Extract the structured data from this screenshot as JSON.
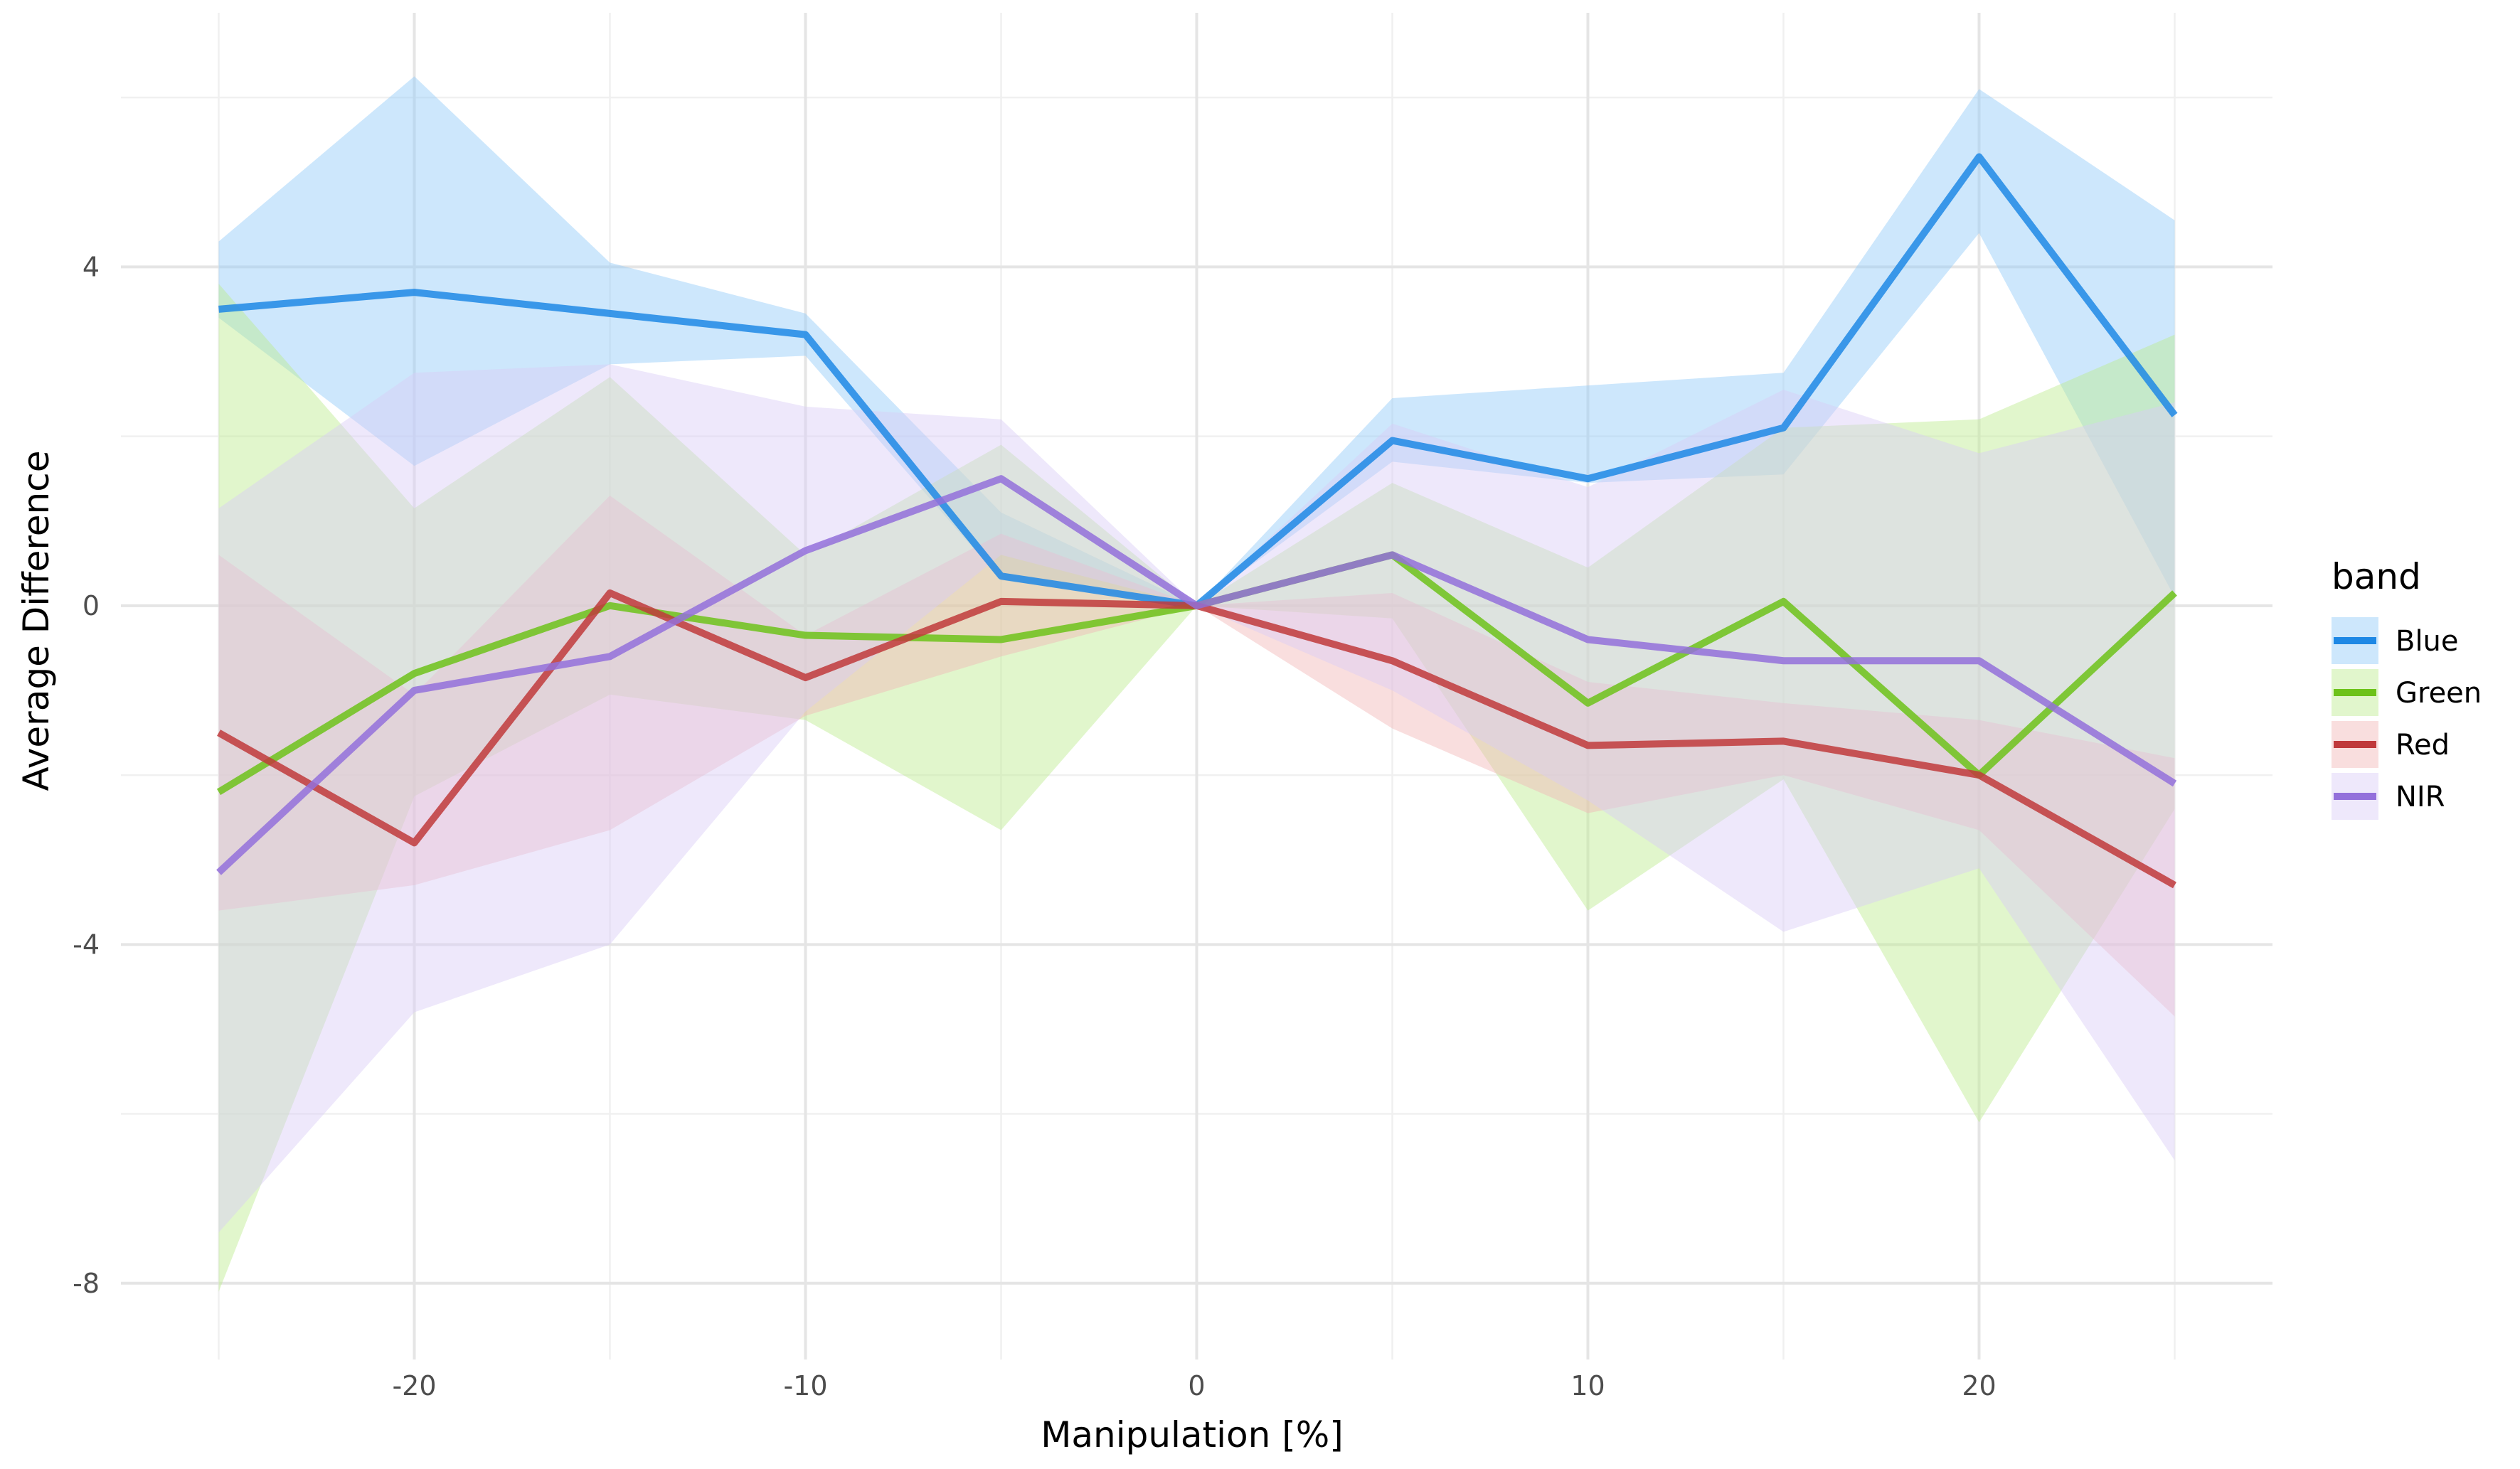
{
  "chart_data": {
    "type": "line",
    "title": "",
    "xlabel": "Manipulation [%]",
    "ylabel": "Average Difference",
    "x": [
      -25,
      -20,
      -15,
      -10,
      -5,
      0,
      5,
      10,
      15,
      20,
      25
    ],
    "xlim": [
      -27.5,
      27.5
    ],
    "ylim": [
      -8.9,
      7.0
    ],
    "x_ticks": [
      -20,
      -10,
      0,
      10,
      20
    ],
    "x_tick_labels": [
      "-20",
      "-10",
      "0",
      "10",
      "20"
    ],
    "y_ticks": [
      -8,
      -4,
      0,
      4
    ],
    "y_tick_labels": [
      "-8",
      "-4",
      "0",
      "4"
    ],
    "grid": true,
    "legend": {
      "title": "band",
      "position": "right"
    },
    "series": [
      {
        "name": "Blue",
        "color": "#1E88E5",
        "fill": "#90CAF9",
        "values": [
          3.5,
          3.7,
          3.45,
          3.2,
          0.35,
          0,
          1.95,
          1.5,
          2.1,
          5.3,
          2.25
        ],
        "lower": [
          3.4,
          1.65,
          2.85,
          2.95,
          0.3,
          0,
          1.7,
          1.45,
          1.55,
          4.4,
          0.1
        ],
        "upper": [
          4.3,
          6.25,
          4.05,
          3.45,
          1.1,
          0,
          2.45,
          2.6,
          2.75,
          6.1,
          4.55
        ]
      },
      {
        "name": "Green",
        "color": "#6DC21A",
        "fill": "#BDEB8F",
        "values": [
          -2.2,
          -0.8,
          0.0,
          -0.35,
          -0.4,
          0,
          0.6,
          -1.15,
          0.05,
          -2.0,
          0.15
        ],
        "lower": [
          -8.1,
          -2.25,
          -1.05,
          -1.35,
          -2.65,
          0,
          -0.15,
          -3.6,
          -2.05,
          -6.1,
          -2.4
        ],
        "upper": [
          3.8,
          1.15,
          2.7,
          0.6,
          1.9,
          0,
          1.45,
          0.45,
          2.1,
          2.2,
          3.2
        ]
      },
      {
        "name": "Red",
        "color": "#C0393B",
        "fill": "#F2B6B6",
        "values": [
          -1.5,
          -2.8,
          0.15,
          -0.85,
          0.05,
          0,
          -0.65,
          -1.65,
          -1.6,
          -2.0,
          -3.3
        ],
        "lower": [
          -3.6,
          -3.3,
          -2.65,
          -1.3,
          -0.6,
          0,
          -1.45,
          -2.45,
          -2.0,
          -2.65,
          -4.85
        ],
        "upper": [
          0.6,
          -1.05,
          1.3,
          -0.35,
          0.85,
          0,
          0.15,
          -0.9,
          -1.15,
          -1.35,
          -1.8
        ]
      },
      {
        "name": "NIR",
        "color": "#9370DB",
        "fill": "#D9CCF7",
        "values": [
          -3.15,
          -1.0,
          -0.6,
          0.65,
          1.5,
          0,
          0.6,
          -0.4,
          -0.65,
          -0.65,
          -2.1
        ],
        "lower": [
          -7.4,
          -4.8,
          -4.0,
          -1.25,
          0.6,
          0,
          -1.0,
          -2.3,
          -3.85,
          -3.1,
          -6.55
        ],
        "upper": [
          1.15,
          2.75,
          2.85,
          2.35,
          2.2,
          0,
          2.15,
          1.4,
          2.55,
          1.8,
          2.4
        ]
      }
    ]
  }
}
